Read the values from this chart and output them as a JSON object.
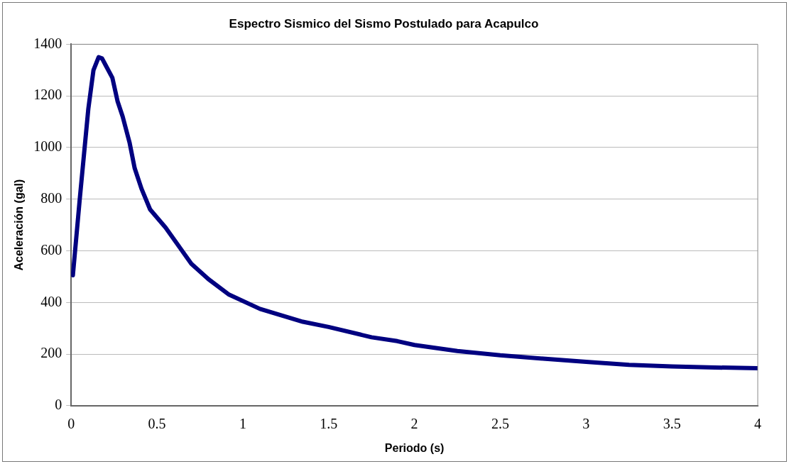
{
  "chart_data": {
    "type": "line",
    "title": "Espectro Sismico del Sismo Postulado para Acapulco",
    "xlabel": "Periodo (s)",
    "ylabel": "Aceleración (gal)",
    "x": [
      0.01,
      0.05,
      0.1,
      0.13,
      0.16,
      0.18,
      0.2,
      0.24,
      0.27,
      0.3,
      0.34,
      0.37,
      0.41,
      0.46,
      0.55,
      0.7,
      0.8,
      0.92,
      1.1,
      1.35,
      1.5,
      1.75,
      1.9,
      2.0,
      2.25,
      2.5,
      2.75,
      3.0,
      3.25,
      3.5,
      3.75,
      4.0
    ],
    "series": [
      {
        "color": "#000080",
        "values": [
          505,
          800,
          1150,
          1300,
          1350,
          1345,
          1320,
          1270,
          1180,
          1120,
          1020,
          920,
          840,
          760,
          690,
          550,
          490,
          430,
          375,
          325,
          305,
          265,
          250,
          235,
          212,
          195,
          182,
          170,
          158,
          152,
          148,
          145
        ]
      }
    ],
    "xlim": [
      0,
      4
    ],
    "xticks": [
      0,
      0.5,
      1,
      1.5,
      2,
      2.5,
      3,
      3.5,
      4
    ],
    "ylim": [
      0,
      1400
    ],
    "yticks": [
      0,
      200,
      400,
      600,
      800,
      1000,
      1200,
      1400
    ],
    "grid": "y",
    "legend": false,
    "marker": "none",
    "line_style": "solid"
  }
}
